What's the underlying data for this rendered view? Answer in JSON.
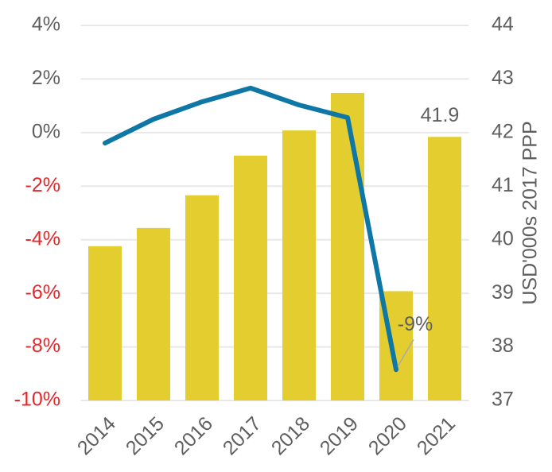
{
  "chart_data": {
    "type": "bar_line",
    "categories": [
      "2014",
      "2015",
      "2016",
      "2017",
      "2018",
      "2019",
      "2020",
      "2021"
    ],
    "series": [
      {
        "type": "bar",
        "axis": "y2",
        "color": "#e3cd2f",
        "values": [
          39.88,
          40.22,
          40.83,
          41.57,
          42.04,
          42.74,
          39.04,
          41.92
        ],
        "value_labels": [
          null,
          null,
          null,
          null,
          null,
          null,
          null,
          "41.9"
        ]
      },
      {
        "type": "line",
        "axis": "y",
        "color": "#0f77a6",
        "values": [
          -0.39,
          0.5,
          1.15,
          1.66,
          1.03,
          0.56,
          -8.85,
          null
        ],
        "value_labels": [
          null,
          null,
          null,
          null,
          null,
          null,
          "-9%",
          null
        ]
      }
    ],
    "ylim": [
      -10,
      4
    ],
    "yticks": [
      {
        "value": -10,
        "label": "-10%"
      },
      {
        "value": -8,
        "label": "-8%"
      },
      {
        "value": -6,
        "label": "-6%"
      },
      {
        "value": -4,
        "label": "-4%"
      },
      {
        "value": -2,
        "label": "-2%"
      },
      {
        "value": 0,
        "label": "0%"
      },
      {
        "value": 2,
        "label": "2%"
      },
      {
        "value": 4,
        "label": "4%"
      }
    ],
    "negative_tick_color": "#e8262a",
    "y2lim": [
      37,
      44
    ],
    "y2ticks": [
      37,
      38,
      39,
      40,
      41,
      42,
      43,
      44
    ],
    "y2label": "USD'000s 2017 PPP",
    "grid": true
  }
}
